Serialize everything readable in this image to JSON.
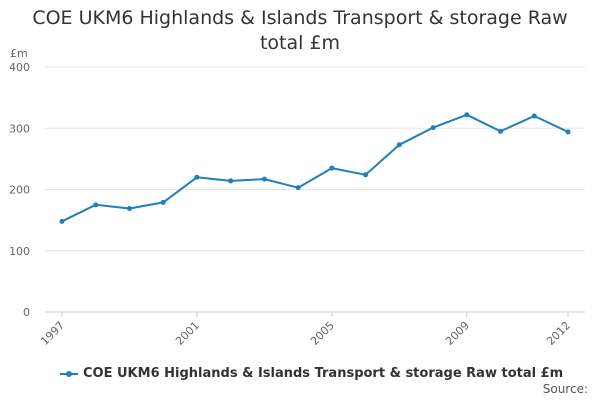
{
  "chart_data": {
    "type": "line",
    "title": [
      "COE UKM6 Highlands & Islands Transport & storage Raw",
      "total £m"
    ],
    "ylabel": "£m",
    "ylim": [
      0,
      400
    ],
    "yticks": [
      0,
      100,
      200,
      300,
      400
    ],
    "xticks": [
      "1997",
      "2001",
      "2005",
      "2009",
      "2012"
    ],
    "x": [
      1997,
      1998,
      1999,
      2000,
      2001,
      2002,
      2003,
      2004,
      2005,
      2006,
      2007,
      2008,
      2009,
      2010,
      2011,
      2012
    ],
    "series": [
      {
        "name": "COE UKM6 Highlands & Islands Transport & storage Raw total £m",
        "color": "#1f7fbf",
        "values": [
          148,
          175,
          169,
          179,
          220,
          214,
          217,
          203,
          235,
          224,
          273,
          301,
          322,
          295,
          320,
          294
        ]
      }
    ],
    "grid": true,
    "legend": "bottom"
  },
  "footer": {
    "source": "Source:"
  }
}
